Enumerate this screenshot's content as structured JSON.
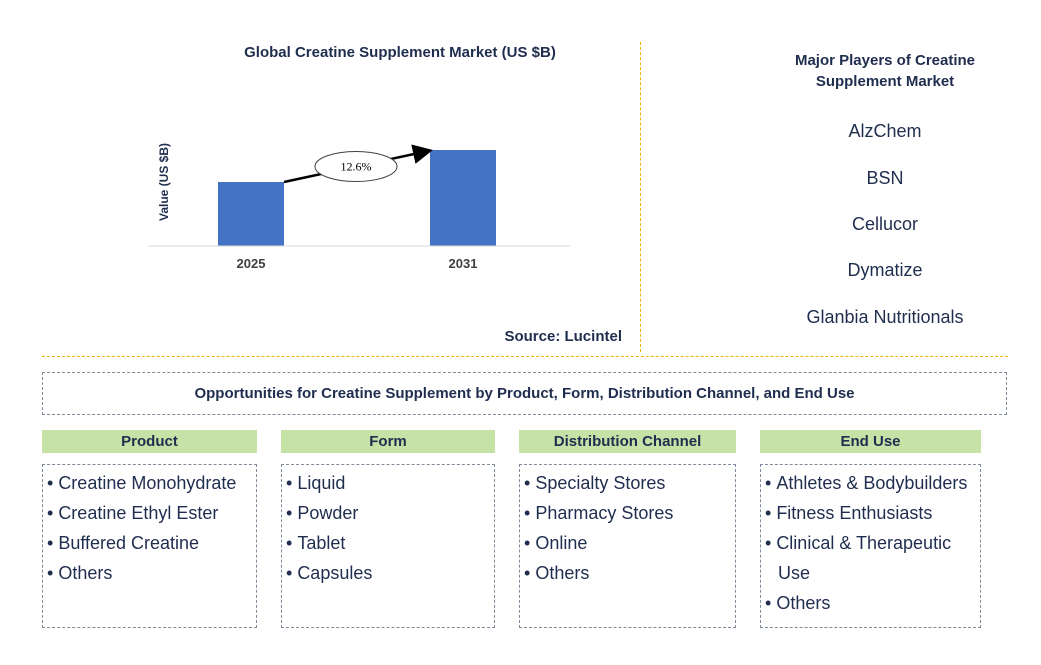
{
  "chart_data": {
    "type": "bar",
    "title": "Global Creatine Supplement Market (US $B)",
    "ylabel": "Value (US $B)",
    "xlabel": "",
    "categories": [
      "2025",
      "2031"
    ],
    "series": [
      {
        "values": [
          1.0,
          1.5
        ]
      }
    ],
    "annotation": "12.6%",
    "color": "#4472c4",
    "source": "Source: Lucintel"
  },
  "players": {
    "title": "Major Players of Creatine Supplement Market",
    "items": [
      "AlzChem",
      "BSN",
      "Cellucor",
      "Dymatize",
      "Glanbia Nutritionals"
    ]
  },
  "opportunities": {
    "title": "Opportunities for Creatine Supplement by Product, Form, Distribution Channel, and End Use",
    "categories": [
      {
        "title": "Product",
        "items": [
          "Creatine Monohydrate",
          "Creatine Ethyl Ester",
          "Buffered Creatine",
          "Others"
        ]
      },
      {
        "title": "Form",
        "items": [
          "Liquid",
          "Powder",
          "Tablet",
          "Capsules"
        ]
      },
      {
        "title": "Distribution Channel",
        "items": [
          "Specialty Stores",
          "Pharmacy Stores",
          "Online",
          "Others"
        ]
      },
      {
        "title": "End Use",
        "items": [
          "Athletes & Bodybuilders",
          "Fitness Enthusiasts",
          "Clinical & Therapeutic Use",
          "Others"
        ]
      }
    ]
  }
}
